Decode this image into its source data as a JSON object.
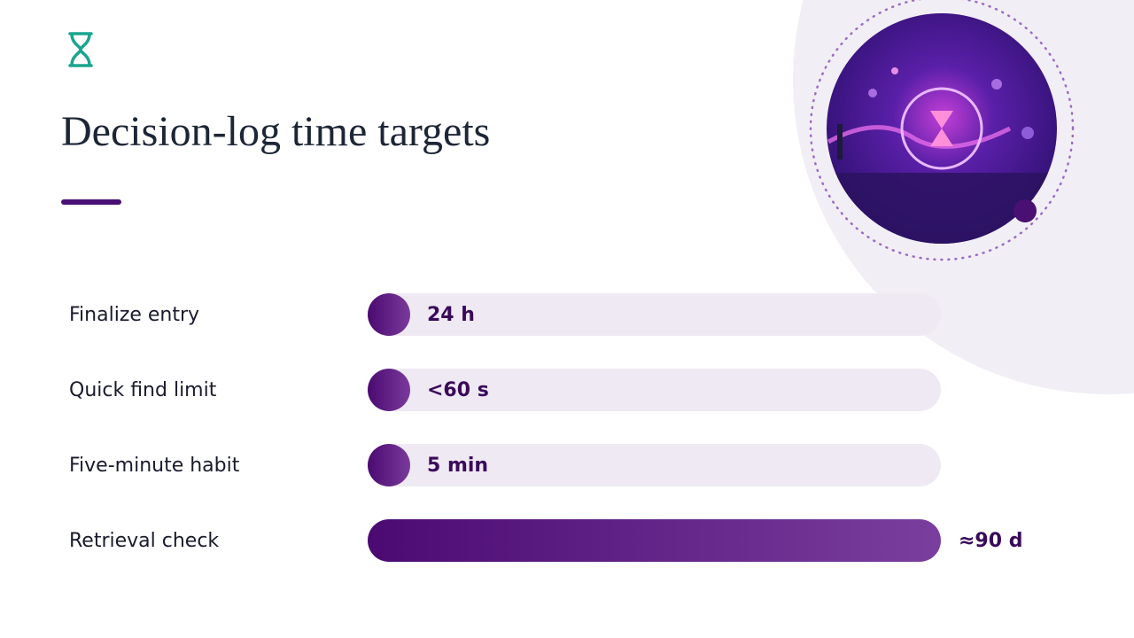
{
  "title": "Decision-log time targets",
  "rows": [
    {
      "label": "Finalize entry",
      "value": "24 h"
    },
    {
      "label": "Quick find limit",
      "value": "<60 s"
    },
    {
      "label": "Five-minute habit",
      "value": "5 min"
    },
    {
      "label": "Retrieval check",
      "value": "≈90 d"
    }
  ]
}
